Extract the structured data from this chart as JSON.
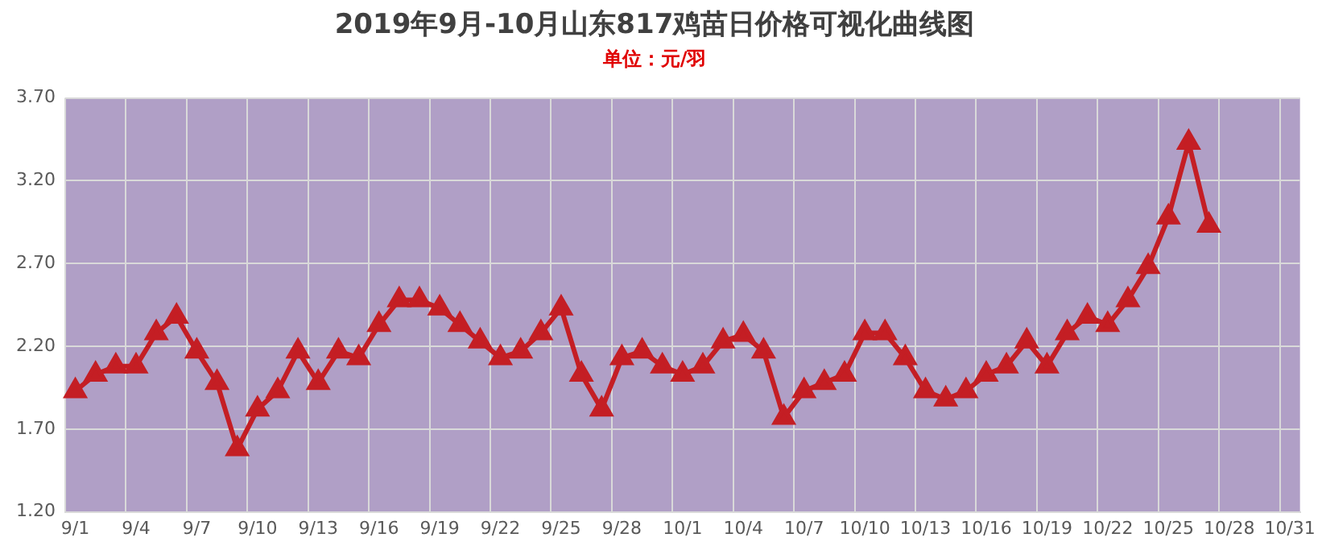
{
  "chart_data": {
    "type": "line",
    "title": "2019年9月-10月山东817鸡苗日价格可视化曲线图",
    "subtitle": "单位：元/羽",
    "categories": [
      "9/1",
      null,
      null,
      "9/4",
      null,
      null,
      "9/7",
      null,
      null,
      "9/10",
      null,
      null,
      "9/13",
      null,
      null,
      "9/16",
      null,
      null,
      "9/19",
      null,
      null,
      "9/22",
      null,
      null,
      "9/25",
      null,
      null,
      "9/28",
      null,
      null,
      "10/1",
      null,
      null,
      "10/4",
      null,
      null,
      "10/7",
      null,
      null,
      "10/10",
      null,
      null,
      "10/13",
      null,
      null,
      "10/16",
      null,
      null,
      "10/19",
      null,
      null,
      "10/22",
      null,
      null,
      "10/25",
      null,
      null,
      "10/28",
      null,
      null,
      "10/31"
    ],
    "series": [
      {
        "color": "#c41e24",
        "values": [
          1.93,
          2.03,
          2.08,
          2.08,
          2.28,
          2.38,
          2.17,
          1.98,
          1.58,
          1.82,
          1.93,
          2.17,
          1.98,
          2.17,
          2.13,
          2.33,
          2.48,
          2.48,
          2.43,
          2.33,
          2.23,
          2.13,
          2.17,
          2.28,
          2.43,
          2.03,
          1.82,
          2.13,
          2.17,
          2.08,
          2.03,
          2.08,
          2.23,
          2.27,
          2.17,
          1.77,
          1.93,
          1.98,
          2.03,
          2.28,
          2.28,
          2.13,
          1.93,
          1.88,
          1.93,
          2.03,
          2.08,
          2.23,
          2.08,
          2.28,
          2.38,
          2.33,
          2.48,
          2.68,
          2.98,
          3.43,
          2.93,
          null,
          null,
          null,
          null
        ]
      }
    ],
    "ylim": [
      1.2,
      3.7
    ],
    "yticks": [
      {
        "value": 1.2,
        "label": "1.20"
      },
      {
        "value": 1.7,
        "label": "1.70"
      },
      {
        "value": 2.2,
        "label": "2.20"
      },
      {
        "value": 2.7,
        "label": "2.70"
      },
      {
        "value": 3.2,
        "label": "3.20"
      },
      {
        "value": 3.7,
        "label": "3.70"
      }
    ],
    "grid": true,
    "legend": false,
    "marker": "triangle",
    "line_style": "solid"
  }
}
